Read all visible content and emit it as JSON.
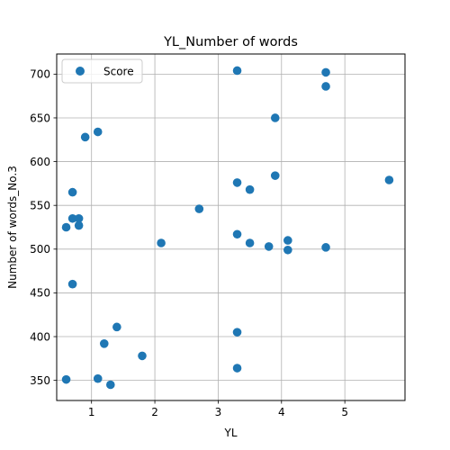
{
  "chart_data": {
    "type": "scatter",
    "title": "YL_Number of words",
    "xlabel": "YL",
    "ylabel": "Number of words_No.3",
    "xlim": [
      0.45,
      5.95
    ],
    "ylim": [
      327,
      723
    ],
    "xticks": [
      1,
      2,
      3,
      4,
      5
    ],
    "yticks": [
      350,
      400,
      450,
      500,
      550,
      600,
      650,
      700
    ],
    "grid": true,
    "legend": {
      "position": "top-left",
      "entries": [
        "Score"
      ]
    },
    "series": [
      {
        "name": "Score",
        "color": "#1f77b4",
        "points": [
          [
            0.6,
            525
          ],
          [
            0.6,
            351
          ],
          [
            0.7,
            565
          ],
          [
            0.7,
            535
          ],
          [
            0.7,
            460
          ],
          [
            0.8,
            535
          ],
          [
            0.8,
            527
          ],
          [
            0.9,
            628
          ],
          [
            1.1,
            634
          ],
          [
            1.1,
            352
          ],
          [
            1.2,
            392
          ],
          [
            1.3,
            345
          ],
          [
            1.4,
            411
          ],
          [
            1.8,
            378
          ],
          [
            2.1,
            507
          ],
          [
            2.7,
            546
          ],
          [
            3.3,
            704
          ],
          [
            3.3,
            576
          ],
          [
            3.3,
            517
          ],
          [
            3.3,
            405
          ],
          [
            3.3,
            364
          ],
          [
            3.5,
            568
          ],
          [
            3.5,
            507
          ],
          [
            3.8,
            503
          ],
          [
            3.9,
            650
          ],
          [
            3.9,
            584
          ],
          [
            4.1,
            510
          ],
          [
            4.1,
            499
          ],
          [
            4.7,
            702
          ],
          [
            4.7,
            686
          ],
          [
            4.7,
            502
          ],
          [
            5.7,
            579
          ]
        ]
      }
    ]
  }
}
